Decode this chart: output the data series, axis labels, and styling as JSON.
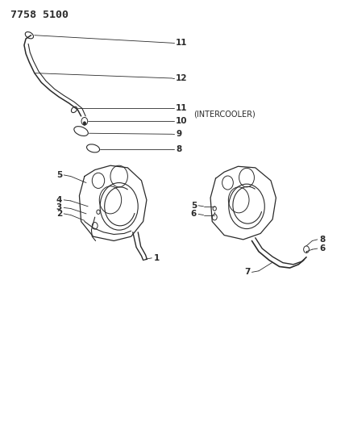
{
  "title": "7758 5100",
  "bg_color": "#ffffff",
  "line_color": "#2a2a2a",
  "intercooler_label": "(INTERCOOLER)",
  "fig_w": 4.28,
  "fig_h": 5.33,
  "dpi": 100
}
